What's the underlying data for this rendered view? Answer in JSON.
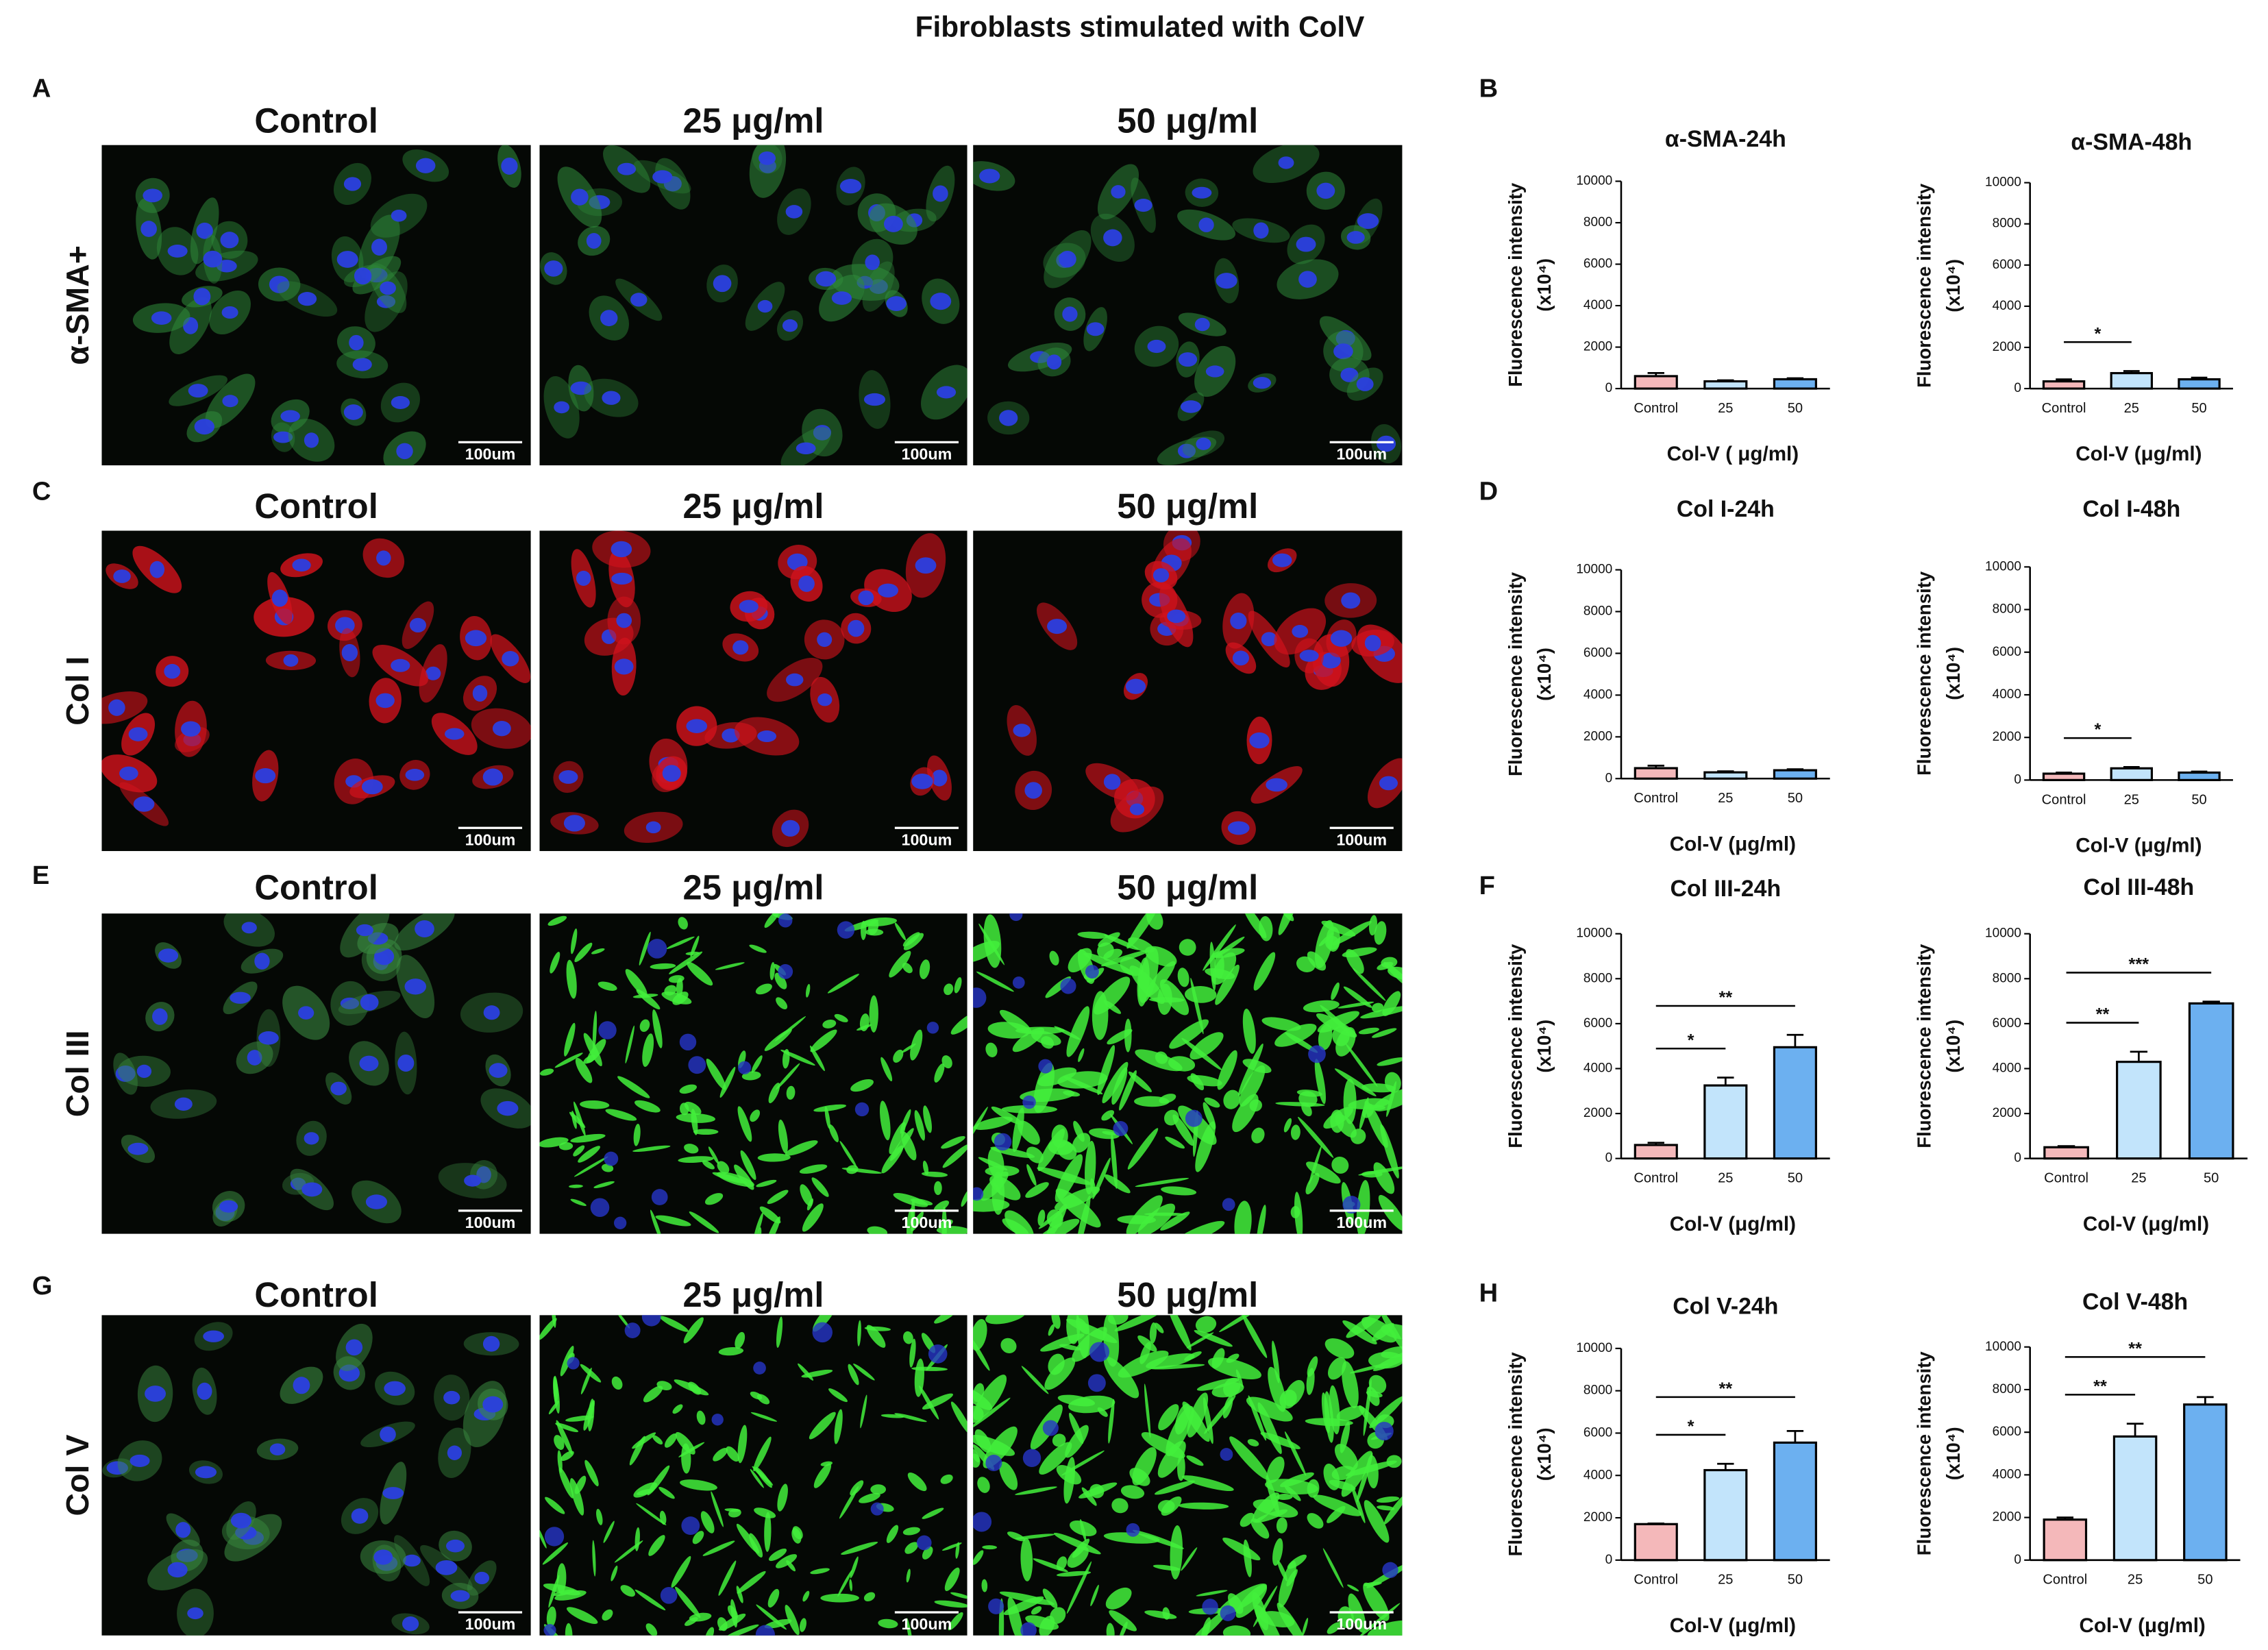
{
  "title": "Fibroblasts stimulated  with ColV",
  "chart_panels": [
    "B",
    "D",
    "F",
    "H"
  ],
  "image_rows": [
    {
      "panel_letter": "A",
      "marker": "α-SMA+",
      "columns": [
        "Control",
        "25 μg/ml",
        "50 μg/ml"
      ],
      "scale_bar": "100um"
    },
    {
      "panel_letter": "C",
      "marker": "Col I",
      "columns": [
        "Control",
        "25 μg/ml",
        "50 μg/ml"
      ],
      "scale_bar": "100um"
    },
    {
      "panel_letter": "E",
      "marker": "Col III",
      "columns": [
        "Control",
        "25 μg/ml",
        "50 μg/ml"
      ],
      "scale_bar": "100um"
    },
    {
      "panel_letter": "G",
      "marker": "Col V",
      "columns": [
        "Control",
        "25 μg/ml",
        "50 μg/ml"
      ],
      "scale_bar": "100um"
    }
  ],
  "chart_data": [
    {
      "type": "bar",
      "title": "α-SMA-24h",
      "ylabel": "Fluorescence intensity",
      "ylabel_unit": "(x10⁴)",
      "xlabel": "Col-V (  μg/ml)",
      "categories": [
        "Control",
        "25",
        "50"
      ],
      "values": [
        600,
        350,
        450
      ],
      "errors": [
        150,
        50,
        50
      ],
      "colors": [
        "#f4b8ba",
        "#c2e4fb",
        "#6cb0f0"
      ],
      "ylim": [
        0,
        10000
      ],
      "yticks": [
        0,
        2000,
        4000,
        6000,
        8000,
        10000
      ],
      "significance": []
    },
    {
      "type": "bar",
      "title": "α-SMA-48h",
      "ylabel": "Fluorescence intensity",
      "ylabel_unit": "(x10⁴)",
      "xlabel": "Col-V (μg/ml)",
      "categories": [
        "Control",
        "25",
        "50"
      ],
      "values": [
        350,
        750,
        450
      ],
      "errors": [
        100,
        100,
        80
      ],
      "colors": [
        "#f4b8ba",
        "#c2e4fb",
        "#6cb0f0"
      ],
      "ylim": [
        0,
        10000
      ],
      "yticks": [
        0,
        2000,
        4000,
        6000,
        8000,
        10000
      ],
      "significance": [
        {
          "from": "Control",
          "to": "25",
          "label": "*"
        }
      ]
    },
    {
      "type": "bar",
      "title": "Col I-24h",
      "ylabel": "Fluorescence intensity",
      "ylabel_unit": "(x10⁴)",
      "xlabel": "Col-V (μg/ml)",
      "categories": [
        "Control",
        "25",
        "50"
      ],
      "values": [
        500,
        300,
        400
      ],
      "errors": [
        120,
        50,
        50
      ],
      "colors": [
        "#f4b8ba",
        "#c2e4fb",
        "#6cb0f0"
      ],
      "ylim": [
        0,
        10000
      ],
      "yticks": [
        0,
        2000,
        4000,
        6000,
        8000,
        10000
      ],
      "significance": []
    },
    {
      "type": "bar",
      "title": "Col I-48h",
      "ylabel": "Fluorescence intensity",
      "ylabel_unit": "(x10⁴)",
      "xlabel": "Col-V (μg/ml)",
      "categories": [
        "Control",
        "25",
        "50"
      ],
      "values": [
        300,
        550,
        350
      ],
      "errors": [
        50,
        60,
        50
      ],
      "colors": [
        "#f4b8ba",
        "#c2e4fb",
        "#6cb0f0"
      ],
      "ylim": [
        0,
        10000
      ],
      "yticks": [
        0,
        2000,
        4000,
        6000,
        8000,
        10000
      ],
      "significance": [
        {
          "from": "Control",
          "to": "25",
          "label": "*"
        }
      ]
    },
    {
      "type": "bar",
      "title": "Col III-24h",
      "ylabel": "Fluorescence intensity",
      "ylabel_unit": "(x10⁴)",
      "xlabel": "Col-V (μg/ml)",
      "categories": [
        "Control",
        "25",
        "50"
      ],
      "values": [
        600,
        3250,
        4950
      ],
      "errors": [
        100,
        350,
        550
      ],
      "colors": [
        "#f4b8ba",
        "#c2e4fb",
        "#6cb0f0"
      ],
      "ylim": [
        0,
        10000
      ],
      "yticks": [
        0,
        2000,
        4000,
        6000,
        8000,
        10000
      ],
      "significance": [
        {
          "from": "Control",
          "to": "25",
          "label": "*"
        },
        {
          "from": "Control",
          "to": "50",
          "label": "**"
        }
      ]
    },
    {
      "type": "bar",
      "title": "Col III-48h",
      "ylabel": "Fluorescence intensity",
      "ylabel_unit": "(x10⁴)",
      "xlabel": "Col-V (μg/ml)",
      "categories": [
        "Control",
        "25",
        "50"
      ],
      "values": [
        500,
        4300,
        6900
      ],
      "errors": [
        50,
        450,
        80
      ],
      "colors": [
        "#f4b8ba",
        "#c2e4fb",
        "#6cb0f0"
      ],
      "ylim": [
        0,
        10000
      ],
      "yticks": [
        0,
        2000,
        4000,
        6000,
        8000,
        10000
      ],
      "significance": [
        {
          "from": "Control",
          "to": "25",
          "label": "**"
        },
        {
          "from": "Control",
          "to": "50",
          "label": "***"
        }
      ]
    },
    {
      "type": "bar",
      "title": "Col V-24h",
      "ylabel": "Fluorescence intensity",
      "ylabel_unit": "(x10⁴)",
      "xlabel": "Col-V (μg/ml)",
      "categories": [
        "Control",
        "25",
        "50"
      ],
      "values": [
        1700,
        4250,
        5550
      ],
      "errors": [
        30,
        300,
        550
      ],
      "colors": [
        "#f4b8ba",
        "#c2e4fb",
        "#6cb0f0"
      ],
      "ylim": [
        0,
        10000
      ],
      "yticks": [
        0,
        2000,
        4000,
        6000,
        8000,
        10000
      ],
      "significance": [
        {
          "from": "Control",
          "to": "25",
          "label": "*"
        },
        {
          "from": "Control",
          "to": "50",
          "label": "**"
        }
      ]
    },
    {
      "type": "bar",
      "title": "Col V-48h",
      "ylabel": "Fluorescence intensity",
      "ylabel_unit": "(x10⁴)",
      "xlabel": "Col-V (μg/ml)",
      "categories": [
        "Control",
        "25",
        "50"
      ],
      "values": [
        1900,
        5800,
        7300
      ],
      "errors": [
        100,
        600,
        350
      ],
      "colors": [
        "#f4b8ba",
        "#c2e4fb",
        "#6cb0f0"
      ],
      "ylim": [
        0,
        10000
      ],
      "yticks": [
        0,
        2000,
        4000,
        6000,
        8000,
        10000
      ],
      "significance": [
        {
          "from": "Control",
          "to": "25",
          "label": "**"
        },
        {
          "from": "Control",
          "to": "50",
          "label": "**"
        }
      ]
    }
  ]
}
